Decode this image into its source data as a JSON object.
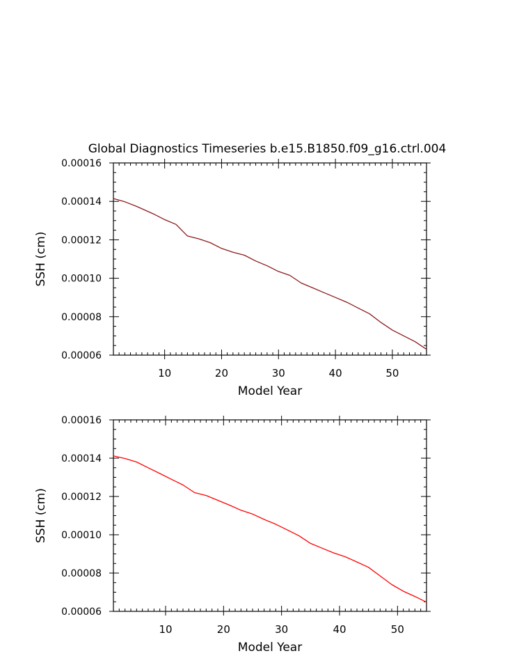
{
  "title": "Global Diagnostics Timeseries b.e15.B1850.f09_g16.ctrl.004",
  "colors": {
    "frame": "#000000",
    "top_series": "#8b1a1a",
    "bottom_series": "#ff0000"
  },
  "chart_data": [
    {
      "type": "line",
      "title": "Global Diagnostics Timeseries b.e15.B1850.f09_g16.ctrl.004",
      "xlabel": "Model Year",
      "ylabel": "SSH (cm)",
      "xlim": [
        1,
        56
      ],
      "ylim": [
        6e-05,
        0.00016
      ],
      "xticks": [
        10,
        20,
        30,
        40,
        50
      ],
      "xtick_labels": [
        "10",
        "20",
        "30",
        "40",
        "50"
      ],
      "yticks": [
        6e-05,
        8e-05,
        0.0001,
        0.00012,
        0.00014,
        0.00016
      ],
      "ytick_labels": [
        "0.00006",
        "0.00008",
        "0.00010",
        "0.00012",
        "0.00014",
        "0.00016"
      ],
      "grid": false,
      "series": [
        {
          "color": "#8b1a1a",
          "x": [
            1,
            3,
            5,
            8,
            10,
            12,
            14,
            16,
            18,
            20,
            22,
            24,
            26,
            28,
            30,
            32,
            34,
            36,
            38,
            40,
            42,
            44,
            46,
            48,
            50,
            52,
            54,
            56
          ],
          "y": [
            0.0001415,
            0.0001398,
            0.0001375,
            0.0001335,
            0.0001305,
            0.000128,
            0.000122,
            0.0001205,
            0.0001185,
            0.0001155,
            0.0001135,
            0.000112,
            0.000109,
            0.0001065,
            0.0001035,
            0.0001015,
            9.75e-05,
            9.5e-05,
            9.25e-05,
            9e-05,
            8.75e-05,
            8.45e-05,
            8.15e-05,
            7.7e-05,
            7.3e-05,
            7e-05,
            6.7e-05,
            6.3e-05
          ]
        }
      ]
    },
    {
      "type": "line",
      "xlabel": "Model Year",
      "ylabel": "SSH (cm)",
      "xlim": [
        1,
        55
      ],
      "ylim": [
        6e-05,
        0.00016
      ],
      "xticks": [
        10,
        20,
        30,
        40,
        50
      ],
      "xtick_labels": [
        "10",
        "20",
        "30",
        "40",
        "50"
      ],
      "yticks": [
        6e-05,
        8e-05,
        0.0001,
        0.00012,
        0.00014,
        0.00016
      ],
      "ytick_labels": [
        "0.00006",
        "0.00008",
        "0.00010",
        "0.00012",
        "0.00014",
        "0.00016"
      ],
      "grid": false,
      "series": [
        {
          "color": "#ff0000",
          "x": [
            1,
            3,
            5,
            7,
            9,
            11,
            13,
            15,
            17,
            19,
            21,
            23,
            25,
            27,
            29,
            31,
            33,
            35,
            37,
            39,
            41,
            43,
            45,
            47,
            49,
            51,
            53,
            55
          ],
          "y": [
            0.0001412,
            0.0001398,
            0.000138,
            0.000135,
            0.000132,
            0.000129,
            0.000126,
            0.000122,
            0.0001205,
            0.000118,
            0.0001155,
            0.0001128,
            0.0001108,
            0.000108,
            0.0001055,
            0.0001025,
            9.95e-05,
            9.55e-05,
            9.3e-05,
            9.05e-05,
            8.85e-05,
            8.58e-05,
            8.3e-05,
            7.85e-05,
            7.4e-05,
            7.05e-05,
            6.78e-05,
            6.48e-05
          ]
        }
      ]
    }
  ]
}
